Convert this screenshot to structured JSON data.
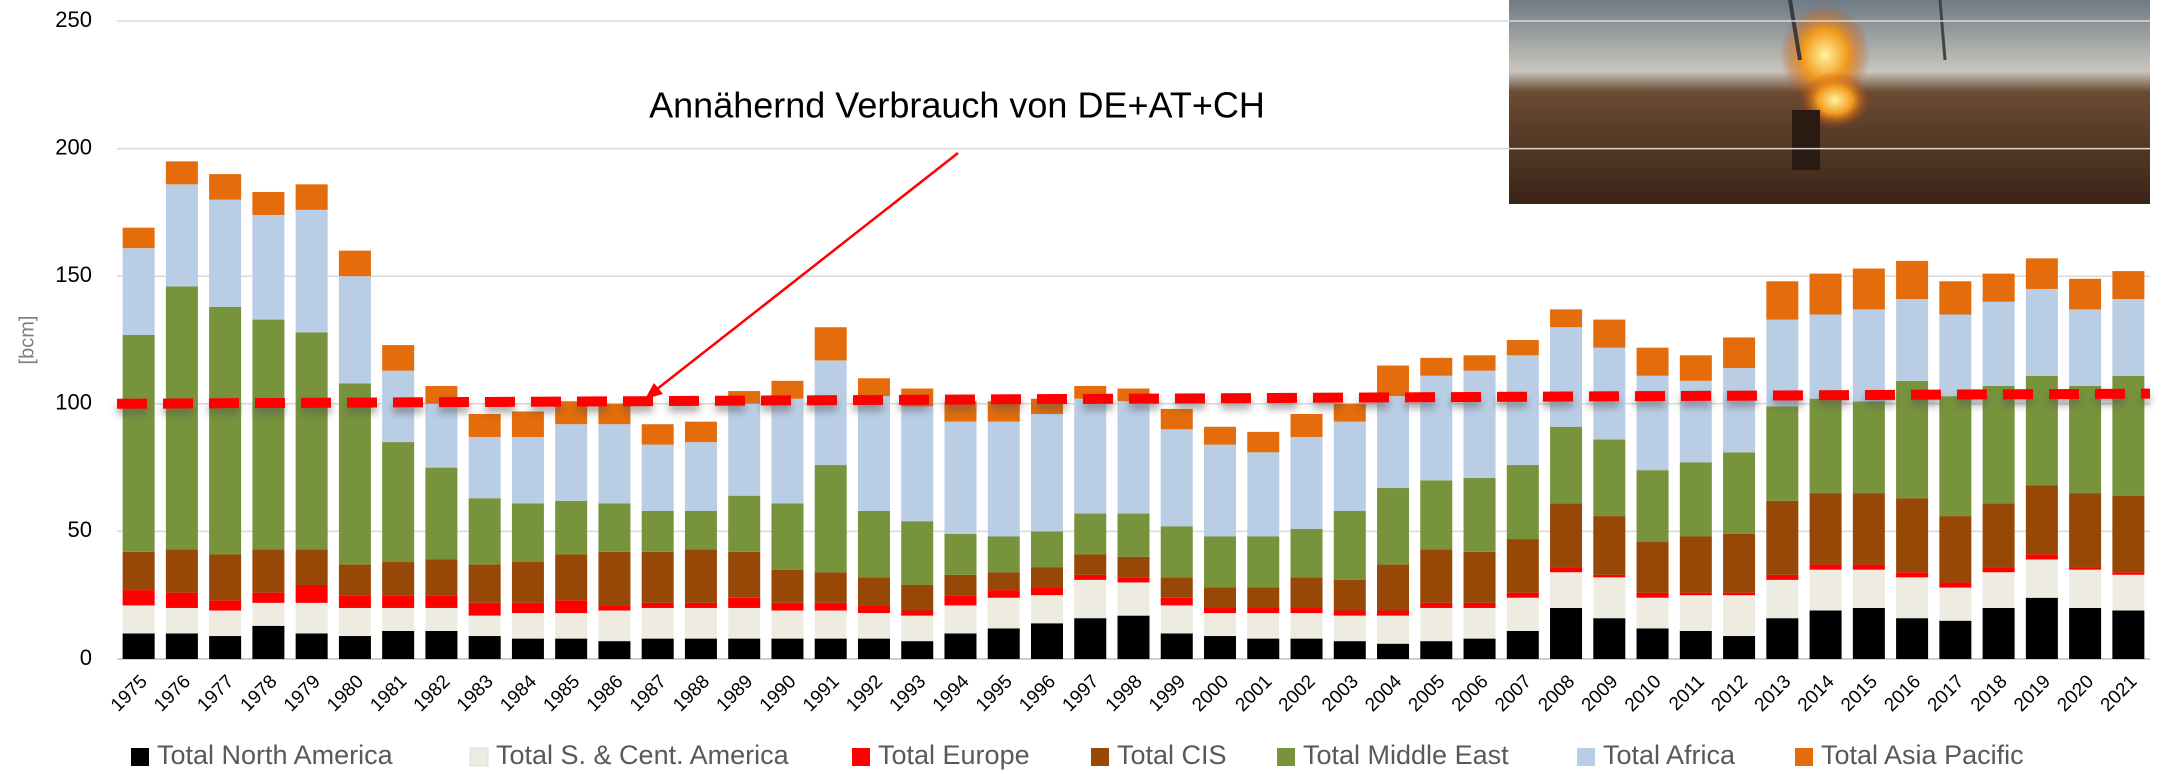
{
  "chart_data": {
    "type": "stacked_bar",
    "y_label": "[bcm]",
    "annotation": "Annähernd Verbrauch von DE+AT+CH",
    "categories": [
      "1975",
      "1976",
      "1977",
      "1978",
      "1979",
      "1980",
      "1981",
      "1982",
      "1983",
      "1984",
      "1985",
      "1986",
      "1987",
      "1988",
      "1989",
      "1990",
      "1991",
      "1992",
      "1993",
      "1994",
      "1995",
      "1996",
      "1997",
      "1998",
      "1999",
      "2000",
      "2001",
      "2002",
      "2003",
      "2004",
      "2005",
      "2006",
      "2007",
      "2008",
      "2009",
      "2010",
      "2011",
      "2012",
      "2013",
      "2014",
      "2015",
      "2016",
      "2017",
      "2018",
      "2019",
      "2020",
      "2021"
    ],
    "series": [
      {
        "name": "Total North America",
        "color": "#000000",
        "values": [
          10,
          10,
          9,
          13,
          10,
          9,
          11,
          11,
          9,
          8,
          8,
          7,
          8,
          8,
          8,
          8,
          8,
          8,
          7,
          10,
          12,
          14,
          16,
          17,
          10,
          9,
          8,
          8,
          7,
          6,
          7,
          8,
          11,
          20,
          16,
          12,
          11,
          9,
          16,
          19,
          20,
          16,
          15,
          20,
          24,
          20,
          19
        ]
      },
      {
        "name": "Total S. & Cent. America",
        "color": "#eeece1",
        "values": [
          11,
          10,
          10,
          9,
          12,
          11,
          9,
          9,
          8,
          10,
          10,
          12,
          12,
          12,
          12,
          11,
          11,
          10,
          10,
          11,
          12,
          11,
          15,
          13,
          11,
          9,
          10,
          10,
          10,
          11,
          13,
          12,
          13,
          14,
          16,
          12,
          14,
          16,
          15,
          16,
          15,
          16,
          13,
          14,
          15,
          15,
          14
        ]
      },
      {
        "name": "Total Europe",
        "color": "#ff0000",
        "values": [
          6,
          6,
          4,
          4,
          7,
          5,
          5,
          5,
          5,
          4,
          5,
          2,
          2,
          2,
          4,
          3,
          3,
          3,
          2,
          4,
          3,
          3,
          2,
          2,
          3,
          2,
          2,
          2,
          2,
          2,
          2,
          2,
          2,
          2,
          1,
          2,
          1,
          1,
          2,
          2,
          2,
          2,
          2,
          2,
          2,
          1,
          1
        ]
      },
      {
        "name": "Total CIS",
        "color": "#974706",
        "values": [
          15,
          17,
          18,
          17,
          14,
          12,
          13,
          14,
          15,
          16,
          18,
          21,
          20,
          21,
          18,
          13,
          12,
          11,
          10,
          8,
          7,
          8,
          8,
          8,
          8,
          8,
          8,
          12,
          12,
          18,
          21,
          20,
          21,
          25,
          23,
          20,
          22,
          23,
          29,
          28,
          28,
          29,
          26,
          25,
          27,
          29,
          30
        ]
      },
      {
        "name": "Total Middle East",
        "color": "#77933c",
        "values": [
          85,
          103,
          97,
          90,
          85,
          71,
          47,
          36,
          26,
          23,
          21,
          19,
          16,
          15,
          22,
          26,
          42,
          26,
          25,
          16,
          14,
          14,
          16,
          17,
          20,
          20,
          20,
          19,
          27,
          30,
          27,
          29,
          29,
          30,
          30,
          28,
          29,
          32,
          37,
          37,
          36,
          46,
          47,
          46,
          43,
          42,
          47
        ]
      },
      {
        "name": "Total Africa",
        "color": "#b9cde5",
        "values": [
          34,
          40,
          42,
          41,
          48,
          42,
          28,
          25,
          24,
          26,
          30,
          31,
          26,
          27,
          36,
          41,
          41,
          45,
          45,
          44,
          45,
          46,
          45,
          44,
          38,
          36,
          33,
          36,
          35,
          36,
          41,
          42,
          43,
          39,
          36,
          37,
          32,
          33,
          34,
          33,
          36,
          32,
          32,
          33,
          34,
          30,
          30
        ]
      },
      {
        "name": "Total Asia Pacific",
        "color": "#e46c0a",
        "values": [
          8,
          9,
          10,
          9,
          10,
          10,
          10,
          7,
          9,
          10,
          9,
          8,
          8,
          8,
          5,
          7,
          13,
          7,
          7,
          8,
          8,
          6,
          5,
          5,
          8,
          7,
          8,
          9,
          7,
          12,
          7,
          6,
          6,
          7,
          11,
          11,
          10,
          12,
          15,
          16,
          16,
          15,
          13,
          11,
          12,
          12,
          11
        ]
      }
    ],
    "trend_line": {
      "start": 100,
      "end": 104,
      "color": "#ff0000"
    },
    "ylim": [
      0,
      250
    ],
    "yticks": [
      0,
      50,
      100,
      150,
      200,
      250
    ],
    "grid": true
  }
}
